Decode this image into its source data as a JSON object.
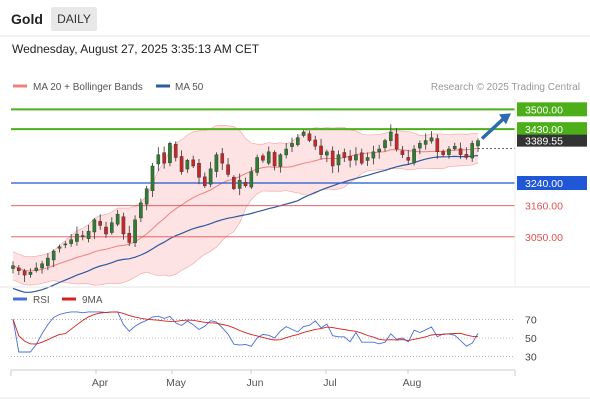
{
  "header": {
    "title": "Gold",
    "timeframe": "DAILY",
    "timestamp": "Wednesday, August 27, 2025 3:35:13 AM CET"
  },
  "legend": {
    "bollinger": "MA 20 + Bollinger Bands",
    "ma50": "MA 50",
    "credit": "Research © 2025 Trading Central"
  },
  "rsi_legend": {
    "rsi": "RSI",
    "ma": "9MA"
  },
  "colors": {
    "candle_up": "#2e7d32",
    "candle_down": "#c62828",
    "bollinger": "#f08080",
    "bollinger_fill": "#fde3e3",
    "ma50": "#2e5a9e",
    "resistance": "#4caf1a",
    "support_blue": "#1f57d6",
    "support_red": "#e05050",
    "rsi": "#4a6fd6",
    "rsi_ma": "#d62020",
    "current_price_tag": "#333333",
    "arrow": "#2e6ab0"
  },
  "chart_data": [
    {
      "type": "candlestick",
      "title": "Gold",
      "timeframe": "DAILY",
      "x": [
        "Apr",
        "May",
        "Jun",
        "Jul",
        "Aug"
      ],
      "ylim": [
        2880,
        3540
      ],
      "current_price": 3389.55,
      "levels": [
        {
          "value": 3500.0,
          "label": "3500.00",
          "kind": "resistance"
        },
        {
          "value": 3430.0,
          "label": "3430.00",
          "kind": "resistance"
        },
        {
          "value": 3240.0,
          "label": "3240.00",
          "kind": "pivot"
        },
        {
          "value": 3160.0,
          "label": "3160.00",
          "kind": "support"
        },
        {
          "value": 3050.0,
          "label": "3050.00",
          "kind": "support"
        }
      ],
      "current_price_label": "3389.55",
      "series": [
        {
          "name": "MA 20 + Bollinger Bands"
        },
        {
          "name": "MA 50"
        }
      ],
      "close_path": [
        2948,
        2930,
        2915,
        2925,
        2940,
        2955,
        2975,
        3000,
        3015,
        3025,
        3040,
        3060,
        3050,
        3070,
        3110,
        3090,
        3060,
        3100,
        3130,
        3060,
        3030,
        3110,
        3170,
        3220,
        3300,
        3340,
        3310,
        3380,
        3330,
        3280,
        3320,
        3300,
        3260,
        3230,
        3290,
        3340,
        3310,
        3270,
        3220,
        3250,
        3230,
        3280,
        3330,
        3320,
        3350,
        3300,
        3340,
        3360,
        3380,
        3400,
        3420,
        3390,
        3370,
        3340,
        3350,
        3300,
        3340,
        3330,
        3320,
        3340,
        3310,
        3330,
        3350,
        3360,
        3390,
        3420,
        3360,
        3340,
        3320,
        3360,
        3380,
        3390,
        3400,
        3350,
        3340,
        3360,
        3370,
        3340,
        3330,
        3380,
        3389.55
      ]
    },
    {
      "type": "line",
      "title": "",
      "x": [
        "Apr",
        "May",
        "Jun",
        "Jul",
        "Aug"
      ],
      "ylim": [
        20,
        80
      ],
      "y_ticks": [
        70,
        50,
        30
      ],
      "series": [
        {
          "name": "RSI"
        },
        {
          "name": "9MA"
        }
      ]
    }
  ]
}
